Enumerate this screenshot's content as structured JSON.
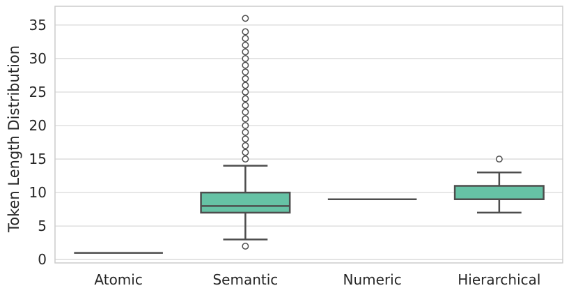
{
  "chart_data": {
    "type": "box",
    "title": "",
    "xlabel": "",
    "ylabel": "Token Length Distribution",
    "ylim": [
      -0.5,
      37.8
    ],
    "yticks": [
      0,
      5,
      10,
      15,
      20,
      25,
      30,
      35
    ],
    "grid": "horizontal",
    "categories": [
      "Atomic",
      "Semantic",
      "Numeric",
      "Hierarchical"
    ],
    "box_color": "#66c2a5",
    "line_color": "#4d4d4d",
    "boxes": [
      {
        "category": "Atomic",
        "min": 1,
        "q1": 1,
        "median": 1,
        "q3": 1,
        "max": 1,
        "outliers": []
      },
      {
        "category": "Semantic",
        "min": 3,
        "q1": 7,
        "median": 8,
        "q3": 10,
        "max": 14,
        "outliers": [
          2,
          15,
          16,
          17,
          18,
          19,
          20,
          21,
          22,
          23,
          24,
          25,
          26,
          27,
          28,
          29,
          30,
          31,
          32,
          33,
          34,
          36
        ]
      },
      {
        "category": "Numeric",
        "min": 9,
        "q1": 9,
        "median": 9,
        "q3": 9,
        "max": 9,
        "outliers": []
      },
      {
        "category": "Hierarchical",
        "min": 7,
        "q1": 9,
        "median": 9,
        "q3": 11,
        "max": 13,
        "outliers": [
          15
        ]
      }
    ]
  }
}
